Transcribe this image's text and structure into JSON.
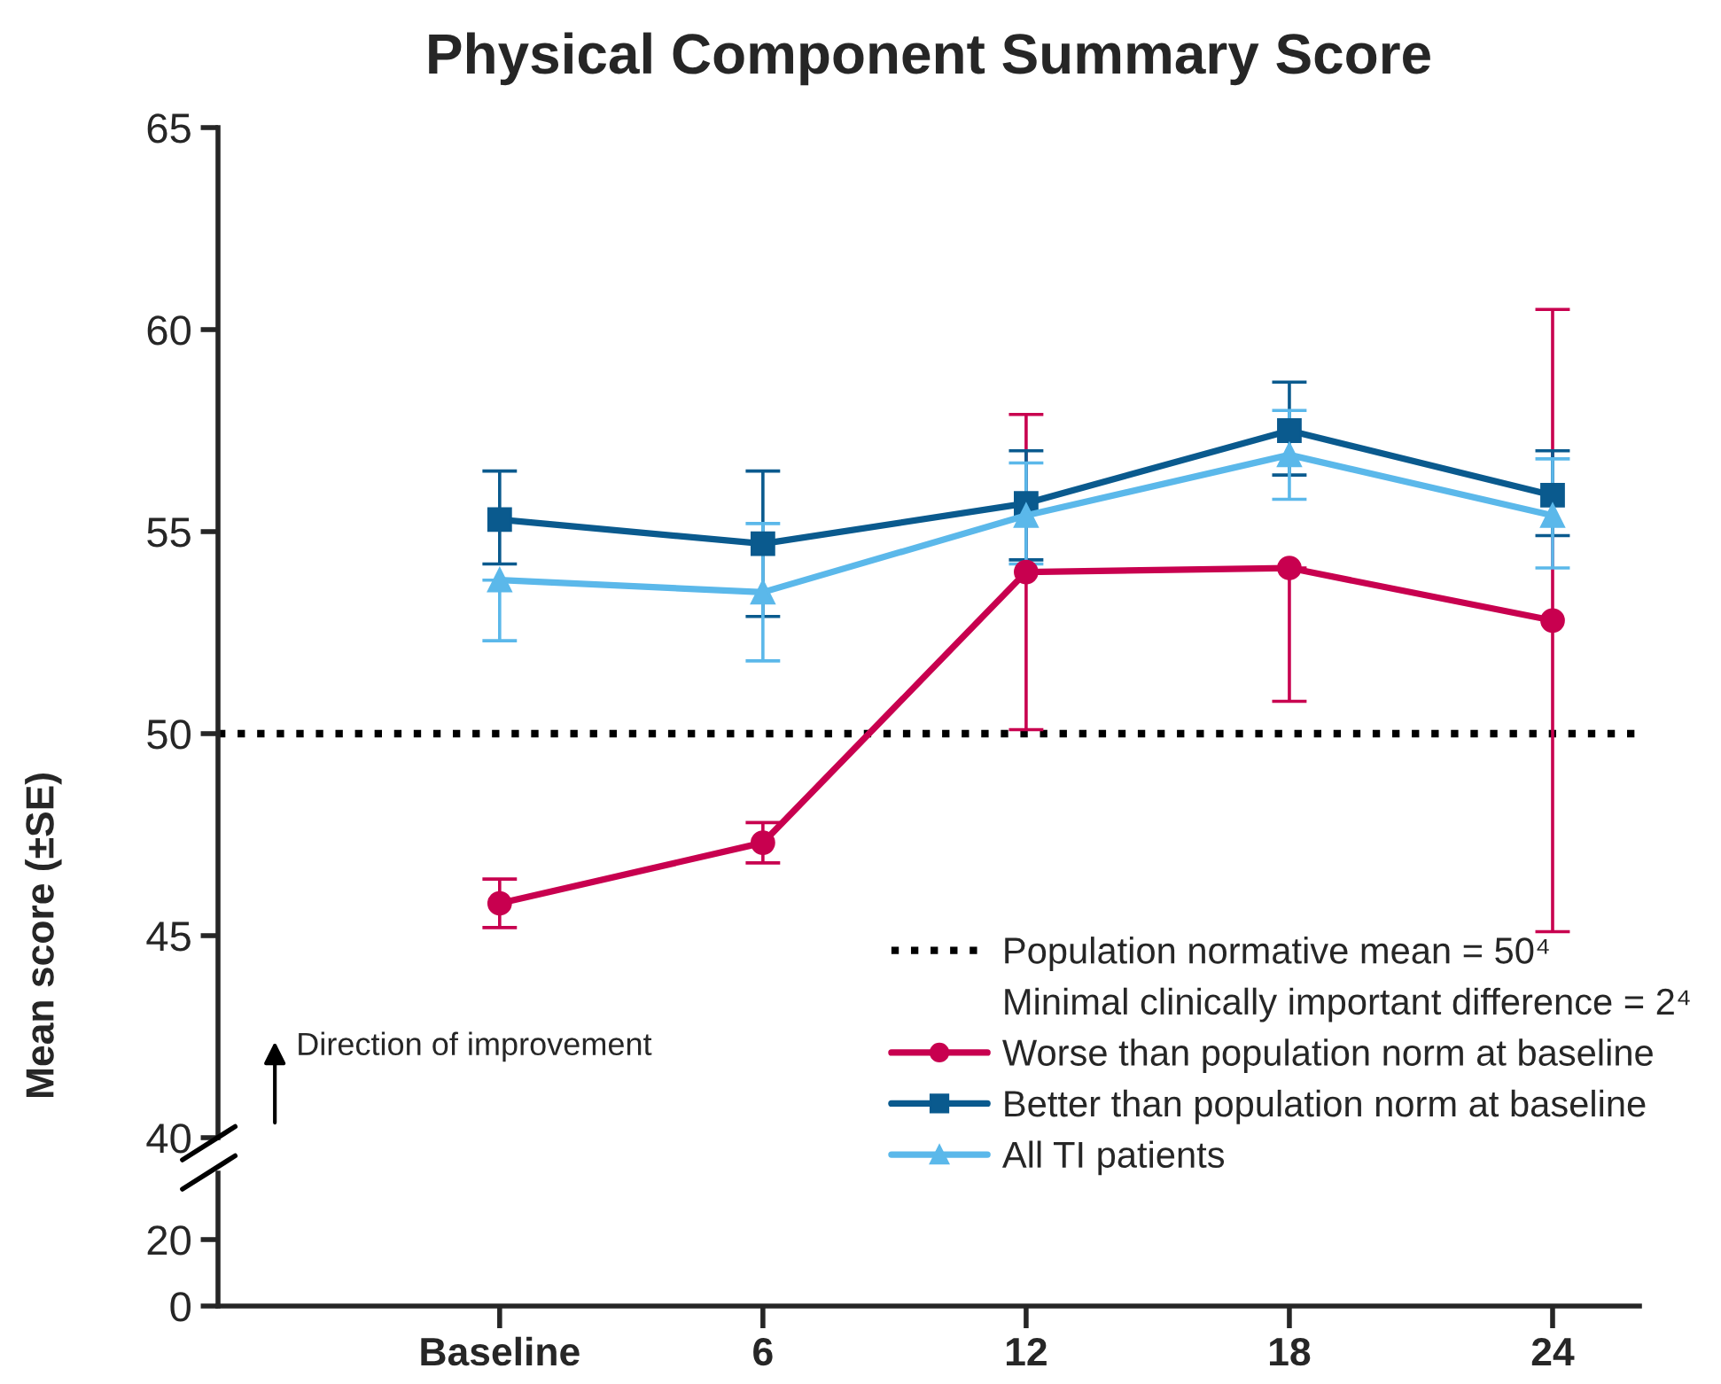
{
  "chart_data": [
    {
      "type": "line",
      "title": "Physical Component Summary Score",
      "ylabel": "Mean score (±SE)",
      "ylim": [
        40,
        65
      ],
      "yticks": [
        40,
        45,
        50,
        55,
        60,
        65
      ],
      "tick_labels": "y",
      "grid": false,
      "legend": "bottom right",
      "ref_lines": [
        {
          "axis": "y",
          "value": 50,
          "label": "Population normative mean = 50⁴",
          "color": "#000000",
          "line_style": "dotted"
        }
      ],
      "annotations": [
        "Minimal clinically important difference = 2⁴",
        "Direction of improvement"
      ],
      "series": [
        {
          "name": "Worse than population norm at baseline",
          "color": "#c8004f",
          "marker": "circle",
          "values": [
            45.8,
            47.3,
            54.0,
            54.1,
            52.8
          ],
          "errors": [
            [
              45.2,
              46.4
            ],
            [
              46.8,
              47.8
            ],
            [
              50.1,
              57.9
            ],
            [
              50.8,
              54.1
            ],
            [
              45.1,
              60.5
            ]
          ]
        },
        {
          "name": "Better than population norm at baseline",
          "color": "#0a5a8e",
          "marker": "square",
          "values": [
            55.3,
            54.7,
            55.7,
            57.5,
            55.9
          ],
          "errors": [
            [
              54.2,
              56.5
            ],
            [
              52.9,
              56.5
            ],
            [
              54.3,
              57.0
            ],
            [
              56.4,
              58.7
            ],
            [
              54.9,
              57.0
            ]
          ]
        },
        {
          "name": "All TI patients",
          "color": "#5bb8ea",
          "marker": "triangle",
          "values": [
            53.8,
            53.5,
            55.4,
            56.9,
            55.4
          ],
          "errors": [
            [
              52.3,
              53.8
            ],
            [
              51.8,
              55.2
            ],
            [
              54.2,
              56.7
            ],
            [
              55.8,
              58.0
            ],
            [
              54.1,
              56.8
            ]
          ]
        }
      ]
    },
    {
      "type": "line",
      "categories": [
        "Baseline",
        "6",
        "12",
        "18",
        "24"
      ],
      "ylim": [
        0,
        40
      ],
      "yticks": [
        0,
        20
      ]
    }
  ]
}
